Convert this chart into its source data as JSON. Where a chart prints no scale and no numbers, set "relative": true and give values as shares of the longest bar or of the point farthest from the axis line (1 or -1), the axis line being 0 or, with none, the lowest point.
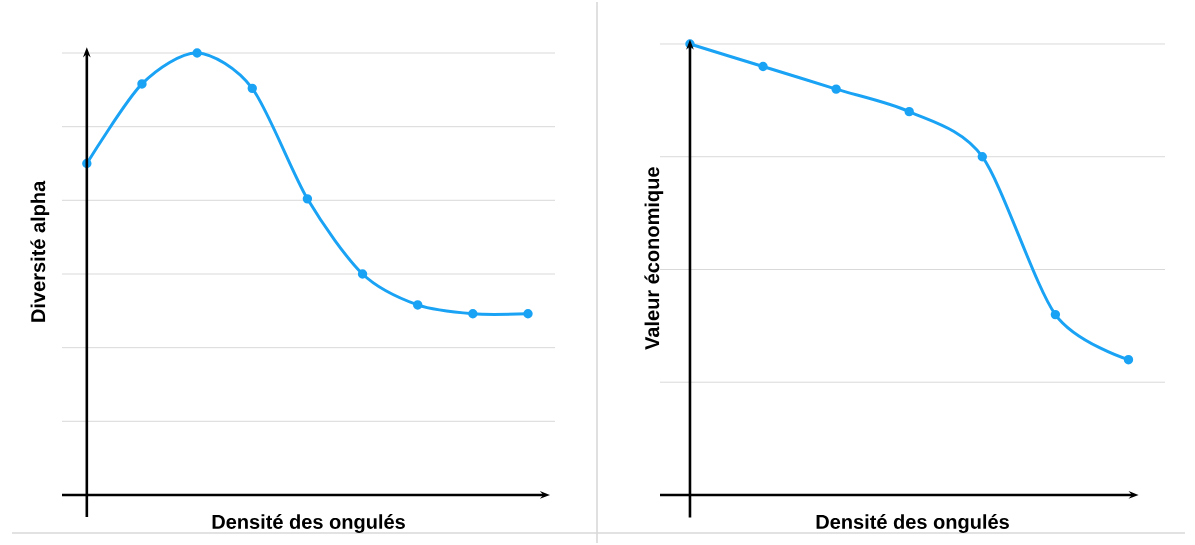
{
  "chart_data": [
    {
      "type": "line",
      "relative": true,
      "xlabel": "Densité des ongulés",
      "ylabel": "Diversité alpha",
      "categories": [
        null,
        null,
        null,
        null,
        null,
        null,
        null,
        null,
        null
      ],
      "color": "#1aa3f5",
      "marker": "circle",
      "grid": "y",
      "values": [
        0.75,
        0.93,
        1,
        0.92,
        0.67,
        0.5,
        0.43,
        0.41,
        0.41
      ]
    },
    {
      "type": "line",
      "relative": true,
      "xlabel": "Densité des ongulés",
      "ylabel": "Valeur économique",
      "categories": [
        null,
        null,
        null,
        null,
        null,
        null,
        null
      ],
      "color": "#1aa3f5",
      "marker": "circle",
      "grid": "y",
      "values": [
        1,
        0.95,
        0.9,
        0.85,
        0.75,
        0.4,
        0.3
      ]
    }
  ]
}
